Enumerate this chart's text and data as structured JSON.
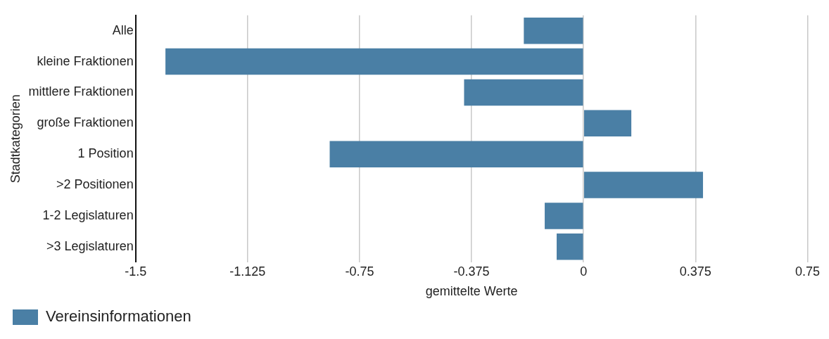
{
  "chart_data": {
    "type": "bar",
    "orientation": "horizontal",
    "xlabel": "gemittelte Werte",
    "ylabel": "Stadtkategorien",
    "categories": [
      "Alle",
      "kleine Fraktionen",
      "mittlere Fraktionen",
      "große Fraktionen",
      "1 Position",
      ">2 Positionen",
      "1-2 Legislaturen",
      ">3 Legislaturen"
    ],
    "series": [
      {
        "name": "Vereinsinformationen",
        "color": "#4a7fa5",
        "values": [
          -0.2,
          -1.4,
          -0.4,
          0.16,
          -0.85,
          0.4,
          -0.13,
          -0.09
        ]
      }
    ],
    "xlim": [
      -1.5,
      0.75
    ],
    "xticks": [
      -1.5,
      -1.125,
      -0.75,
      -0.375,
      0,
      0.375,
      0.75
    ],
    "grid": "x",
    "legend": "bottom left"
  }
}
